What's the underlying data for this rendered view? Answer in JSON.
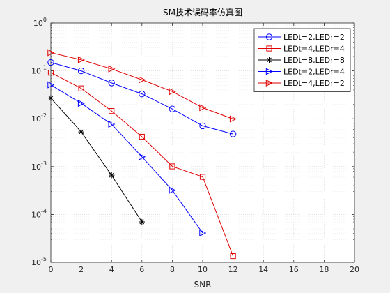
{
  "chart_data": {
    "type": "line",
    "title": "SM技术误码率仿真图",
    "xlabel": "SNR",
    "ylabel": "",
    "yscale": "log",
    "xlim": [
      0,
      20
    ],
    "ylim": [
      1e-05,
      1
    ],
    "xticks": [
      0,
      2,
      4,
      6,
      8,
      10,
      12,
      14,
      16,
      18,
      20
    ],
    "yticks": [
      {
        "base": "10",
        "exp": "0"
      },
      {
        "base": "10",
        "exp": "-1"
      },
      {
        "base": "10",
        "exp": "-2"
      },
      {
        "base": "10",
        "exp": "-3"
      },
      {
        "base": "10",
        "exp": "-4"
      },
      {
        "base": "10",
        "exp": "-5"
      }
    ],
    "grid": true,
    "minor_grid": true,
    "legend_position": "top-right",
    "series": [
      {
        "name": "LEDt=2,LEDr=2",
        "color": "#0000ff",
        "marker": "circle",
        "x": [
          0,
          2,
          4,
          6,
          8,
          10,
          12
        ],
        "y": [
          0.15,
          0.1,
          0.056,
          0.033,
          0.016,
          0.0071,
          0.0048
        ]
      },
      {
        "name": "LEDt=4,LEDr=4",
        "color": "#e00000",
        "marker": "square",
        "x": [
          0,
          2,
          4,
          6,
          8,
          10,
          12
        ],
        "y": [
          0.092,
          0.043,
          0.0145,
          0.0042,
          0.00101,
          0.00061,
          1.35e-05
        ]
      },
      {
        "name": "LEDt=8,LEDr=8",
        "color": "#000000",
        "marker": "star",
        "x": [
          0,
          2,
          4,
          6
        ],
        "y": [
          0.027,
          0.0053,
          0.00066,
          7e-05
        ]
      },
      {
        "name": "LEDt=2,LEDr=4",
        "color": "#0000ff",
        "marker": "triangle-right",
        "x": [
          0,
          2,
          4,
          6,
          8,
          10
        ],
        "y": [
          0.051,
          0.021,
          0.0077,
          0.0016,
          0.00032,
          4.1e-05
        ]
      },
      {
        "name": "LEDt=4,LEDr=2",
        "color": "#e00000",
        "marker": "triangle-right",
        "x": [
          0,
          2,
          4,
          6,
          8,
          10,
          12
        ],
        "y": [
          0.24,
          0.17,
          0.11,
          0.065,
          0.037,
          0.017,
          0.0099
        ]
      }
    ]
  }
}
